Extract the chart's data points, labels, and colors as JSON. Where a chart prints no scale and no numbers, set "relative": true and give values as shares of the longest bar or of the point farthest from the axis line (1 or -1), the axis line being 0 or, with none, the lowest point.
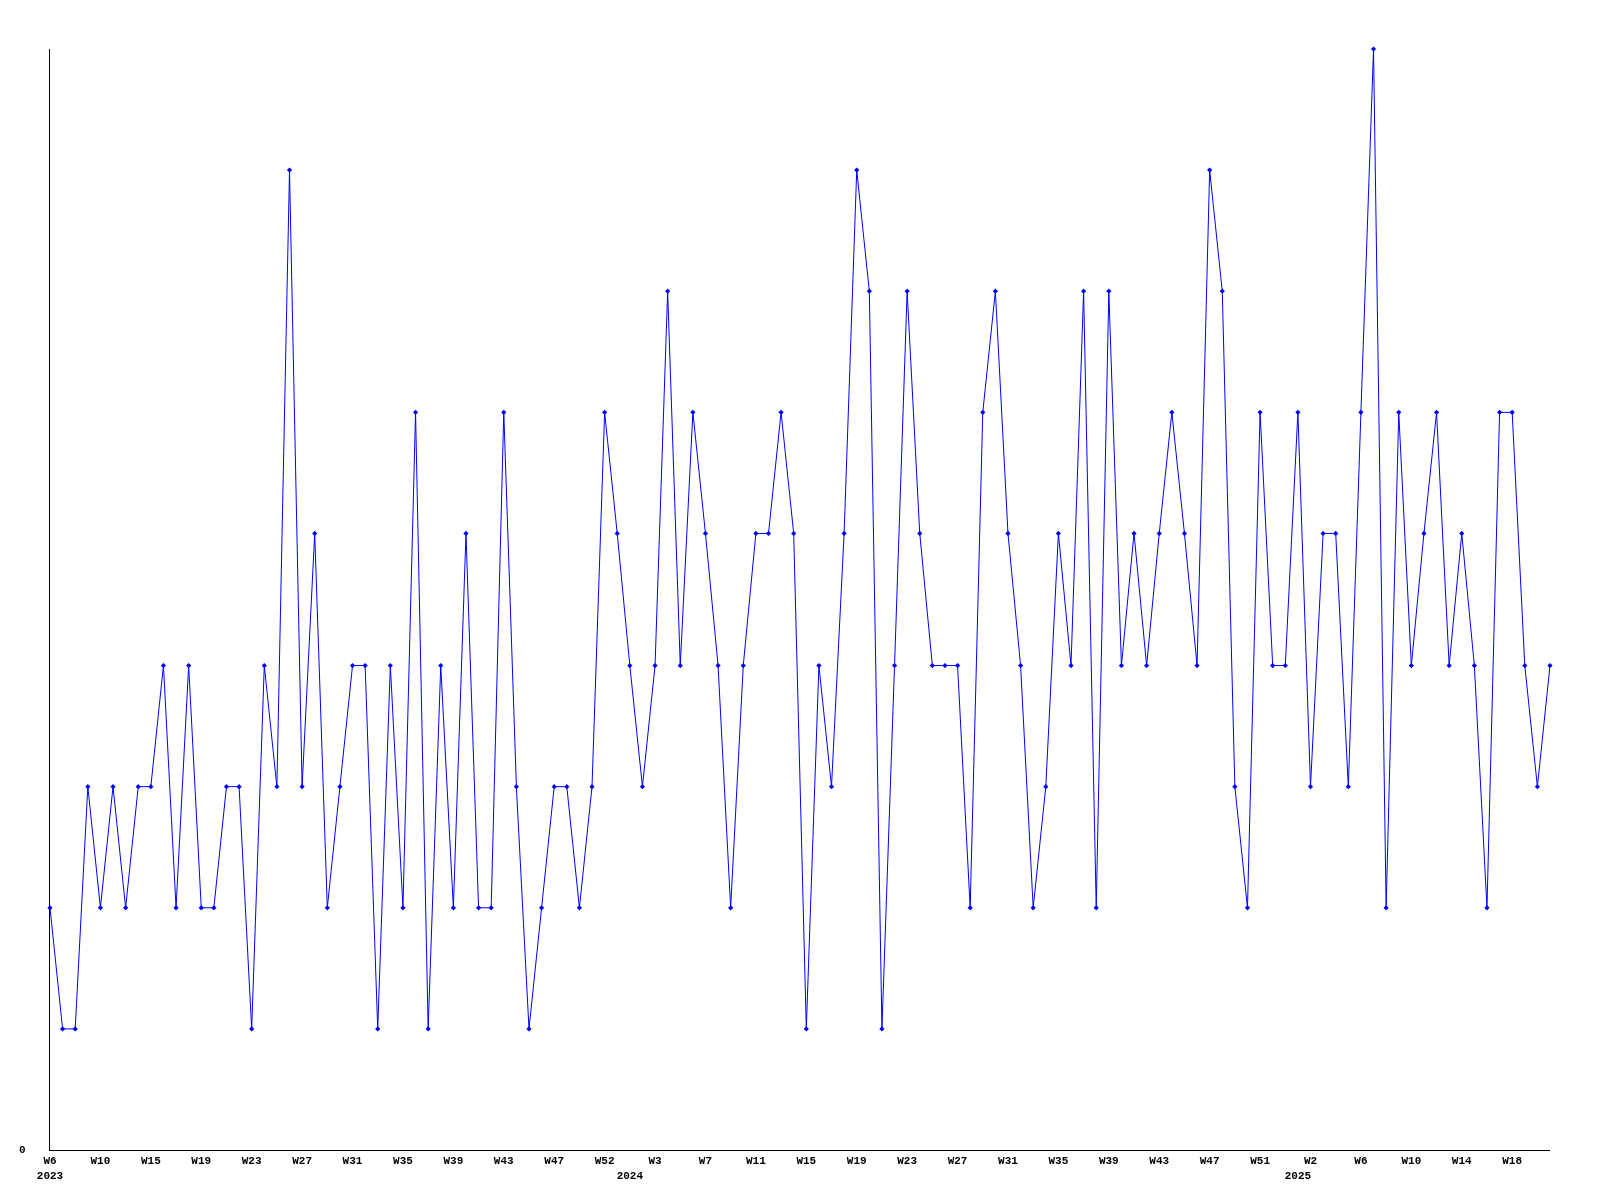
{
  "chart_data": {
    "type": "line",
    "relative": true,
    "marker": "diamond",
    "color": "#0000ff",
    "annotations": [
      "0"
    ],
    "categories": [
      "W6\n2023",
      null,
      null,
      null,
      "W10",
      null,
      null,
      null,
      "W15",
      null,
      null,
      null,
      "W19",
      null,
      null,
      null,
      "W23",
      null,
      null,
      null,
      "W27",
      null,
      null,
      null,
      "W31",
      null,
      null,
      null,
      "W35",
      null,
      null,
      null,
      "W39",
      null,
      null,
      null,
      "W43",
      null,
      null,
      null,
      "W47",
      null,
      null,
      null,
      "W52",
      null,
      "\n2024",
      null,
      "W3",
      null,
      null,
      null,
      "W7",
      null,
      null,
      null,
      "W11",
      null,
      null,
      null,
      "W15",
      null,
      null,
      null,
      "W19",
      null,
      null,
      null,
      "W23",
      null,
      null,
      null,
      "W27",
      null,
      null,
      null,
      "W31",
      null,
      null,
      null,
      "W35",
      null,
      null,
      null,
      "W39",
      null,
      null,
      null,
      "W43",
      null,
      null,
      null,
      "W47",
      null,
      null,
      null,
      "W51",
      null,
      null,
      "\n2025",
      "W2",
      null,
      null,
      null,
      "W6",
      null,
      null,
      null,
      "W10",
      null,
      null,
      null,
      "W14",
      null,
      null,
      null,
      "W18",
      null,
      null,
      null
    ],
    "values": [
      0.22,
      0.11,
      0.11,
      0.33,
      0.22,
      0.33,
      0.22,
      0.33,
      0.33,
      0.44,
      0.22,
      0.44,
      0.22,
      0.22,
      0.33,
      0.33,
      0.11,
      0.44,
      0.33,
      0.89,
      0.33,
      0.56,
      0.22,
      0.33,
      0.44,
      0.44,
      0.11,
      0.44,
      0.22,
      0.67,
      0.11,
      0.44,
      0.22,
      0.56,
      0.22,
      0.22,
      0.67,
      0.33,
      0.11,
      0.22,
      0.33,
      0.33,
      0.22,
      0.33,
      0.67,
      0.56,
      0.44,
      0.33,
      0.44,
      0.78,
      0.44,
      0.67,
      0.56,
      0.44,
      0.22,
      0.44,
      0.56,
      0.56,
      0.67,
      0.56,
      0.11,
      0.44,
      0.33,
      0.56,
      0.89,
      0.78,
      0.11,
      0.44,
      0.78,
      0.56,
      0.44,
      0.44,
      0.44,
      0.22,
      0.67,
      0.78,
      0.56,
      0.44,
      0.22,
      0.33,
      0.56,
      0.44,
      0.78,
      0.22,
      0.78,
      0.44,
      0.56,
      0.44,
      0.56,
      0.67,
      0.56,
      0.44,
      0.89,
      0.78,
      0.33,
      0.22,
      0.67,
      0.44,
      0.44,
      0.67,
      0.33,
      0.56,
      0.56,
      0.33,
      0.67,
      1,
      0.22,
      0.67,
      0.44,
      0.56,
      0.67,
      0.44,
      0.56,
      0.44,
      0.22,
      0.67,
      0.67,
      0.44,
      0.33,
      0.44
    ]
  }
}
